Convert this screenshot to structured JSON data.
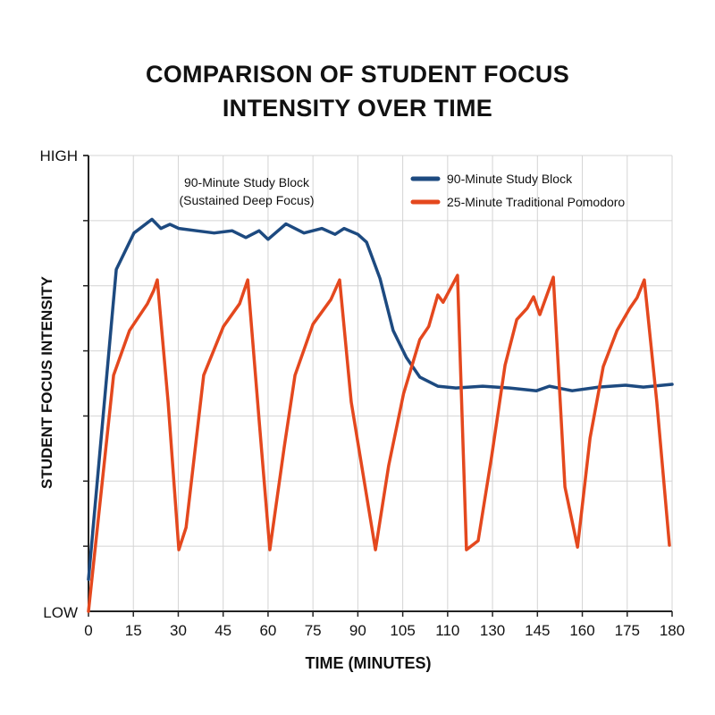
{
  "chart_data": {
    "type": "line",
    "title": "COMPARISON OF STUDENT FOCUS INTENSITY OVER TIME",
    "title_lines": [
      "COMPARISON OF STUDENT FOCUS",
      "INTENSITY OVER TIME"
    ],
    "xlabel": "TIME (MINUTES)",
    "ylabel": "STUDENT FOCUS INTENSITY",
    "x_tick_labels": [
      "0",
      "15",
      "30",
      "45",
      "60",
      "75",
      "90",
      "105",
      "110",
      "130",
      "145",
      "160",
      "175",
      "180"
    ],
    "x_ticks": [
      0,
      15,
      30,
      45,
      60,
      75,
      90,
      105,
      110,
      130,
      145,
      160,
      175,
      180
    ],
    "xlim": [
      0,
      180
    ],
    "y_tick_labels": {
      "low": "LOW",
      "high": "HIGH"
    },
    "ylim": [
      0,
      100
    ],
    "grid": true,
    "legend": "top-right",
    "annotation": [
      "90-Minute Study Block",
      "(Sustained Deep Focus)"
    ],
    "series": [
      {
        "name": "90-Minute Study Block",
        "color": "#1d4a80",
        "x": [
          0,
          9.3,
          15.2,
          21.2,
          24.2,
          27.2,
          30.2,
          36.1,
          42,
          48,
          52.6,
          57,
          60,
          66,
          72,
          78,
          82.4,
          85.4,
          90,
          92.9,
          97.4,
          101.8,
          105.4,
          106.9,
          108.9,
          113.6,
          125.6,
          135.7,
          144.7,
          149,
          156.6,
          165.5,
          174.4,
          176.8,
          180
        ],
        "y": [
          7,
          75,
          83,
          86,
          84,
          84.9,
          84,
          83.5,
          83,
          83.5,
          82,
          83.5,
          81.6,
          85,
          83,
          84,
          82.7,
          84,
          82.7,
          81,
          73,
          61.6,
          55.7,
          51.4,
          49.4,
          49,
          49.4,
          49,
          48.4,
          49.4,
          48.4,
          49.2,
          49.6,
          49.2,
          49.8
        ]
      },
      {
        "name": "25-Minute Traditional Pomodoro",
        "color": "#e4481e",
        "x": [
          0,
          8.4,
          13.7,
          19.7,
          21.8,
          23,
          26.6,
          30.2,
          32.6,
          38.5,
          45.1,
          50.5,
          53.2,
          57,
          60.6,
          65.4,
          69,
          75,
          81,
          83.9,
          87.8,
          95.9,
          100.3,
          105.1,
          106.9,
          107.9,
          108.9,
          109.5,
          114.4,
          118.4,
          123.6,
          129.6,
          134.2,
          138.1,
          141.6,
          143.7,
          145.8,
          150.3,
          154.2,
          158.4,
          162.6,
          167,
          171.6,
          175.3,
          176.1,
          176.9,
          178.3,
          179.7
        ],
        "y": [
          0,
          51.8,
          61.6,
          67.5,
          70.4,
          72.7,
          45.9,
          13.5,
          18.4,
          51.8,
          62.5,
          67.5,
          72.7,
          42,
          13.5,
          36,
          51.8,
          63,
          68.4,
          72.7,
          45.9,
          13.5,
          32,
          47.8,
          59.6,
          62.5,
          69.4,
          67.8,
          73.7,
          13.5,
          15.5,
          34,
          54,
          64,
          66.5,
          69,
          65.1,
          73.3,
          27.3,
          14.1,
          38,
          53.7,
          61.6,
          66.5,
          68.8,
          72.7,
          45.9,
          14.5
        ]
      }
    ]
  }
}
